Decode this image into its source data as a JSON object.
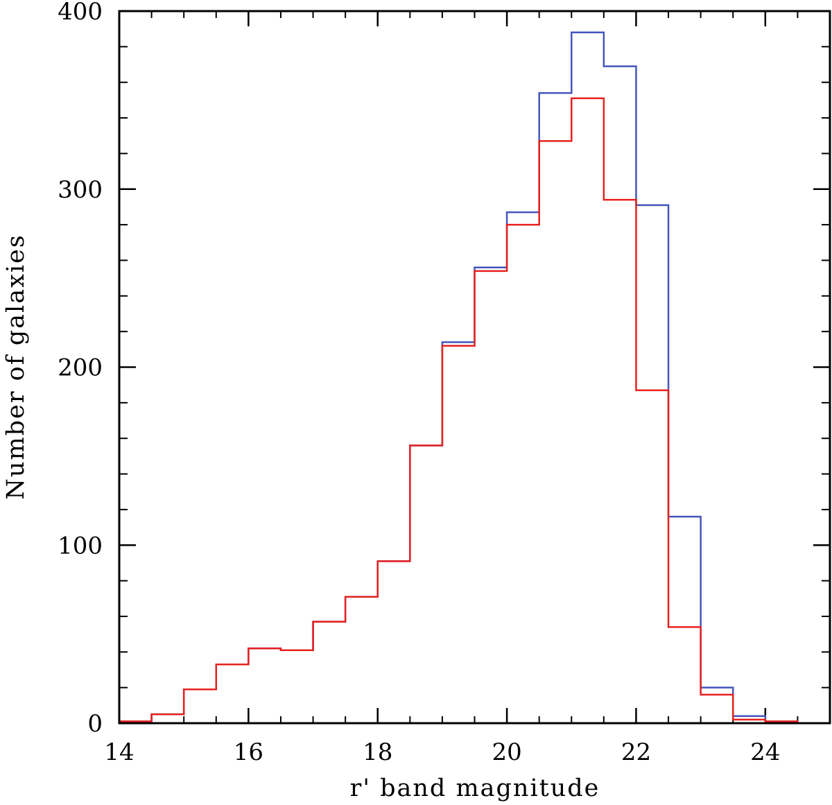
{
  "chart_data": {
    "type": "histogram",
    "xlabel": "r' band magnitude",
    "ylabel": "Number of galaxies",
    "xlim": [
      14,
      25
    ],
    "ylim": [
      0,
      400
    ],
    "xticks": [
      14,
      16,
      18,
      20,
      22,
      24
    ],
    "yticks": [
      0,
      100,
      200,
      300,
      400
    ],
    "bin_width": 0.5,
    "grid": false,
    "series": [
      {
        "color": "#4455bb",
        "bins": [
          {
            "x0": 14.0,
            "y": 1
          },
          {
            "x0": 14.5,
            "y": 5
          },
          {
            "x0": 15.0,
            "y": 19
          },
          {
            "x0": 15.5,
            "y": 33
          },
          {
            "x0": 16.0,
            "y": 42
          },
          {
            "x0": 16.5,
            "y": 41
          },
          {
            "x0": 17.0,
            "y": 57
          },
          {
            "x0": 17.5,
            "y": 71
          },
          {
            "x0": 18.0,
            "y": 91
          },
          {
            "x0": 18.5,
            "y": 156
          },
          {
            "x0": 19.0,
            "y": 214
          },
          {
            "x0": 19.5,
            "y": 256
          },
          {
            "x0": 20.0,
            "y": 287
          },
          {
            "x0": 20.5,
            "y": 354
          },
          {
            "x0": 21.0,
            "y": 388
          },
          {
            "x0": 21.5,
            "y": 369
          },
          {
            "x0": 22.0,
            "y": 291
          },
          {
            "x0": 22.5,
            "y": 116
          },
          {
            "x0": 23.0,
            "y": 20
          },
          {
            "x0": 23.5,
            "y": 4
          },
          {
            "x0": 24.0,
            "y": 1
          }
        ]
      },
      {
        "color": "#e8201e",
        "bins": [
          {
            "x0": 14.0,
            "y": 1
          },
          {
            "x0": 14.5,
            "y": 5
          },
          {
            "x0": 15.0,
            "y": 19
          },
          {
            "x0": 15.5,
            "y": 33
          },
          {
            "x0": 16.0,
            "y": 42
          },
          {
            "x0": 16.5,
            "y": 41
          },
          {
            "x0": 17.0,
            "y": 57
          },
          {
            "x0": 17.5,
            "y": 71
          },
          {
            "x0": 18.0,
            "y": 91
          },
          {
            "x0": 18.5,
            "y": 156
          },
          {
            "x0": 19.0,
            "y": 212
          },
          {
            "x0": 19.5,
            "y": 254
          },
          {
            "x0": 20.0,
            "y": 280
          },
          {
            "x0": 20.5,
            "y": 327
          },
          {
            "x0": 21.0,
            "y": 351
          },
          {
            "x0": 21.5,
            "y": 294
          },
          {
            "x0": 22.0,
            "y": 187
          },
          {
            "x0": 22.5,
            "y": 54
          },
          {
            "x0": 23.0,
            "y": 16
          },
          {
            "x0": 23.5,
            "y": 2
          },
          {
            "x0": 24.0,
            "y": 1
          }
        ]
      }
    ]
  }
}
